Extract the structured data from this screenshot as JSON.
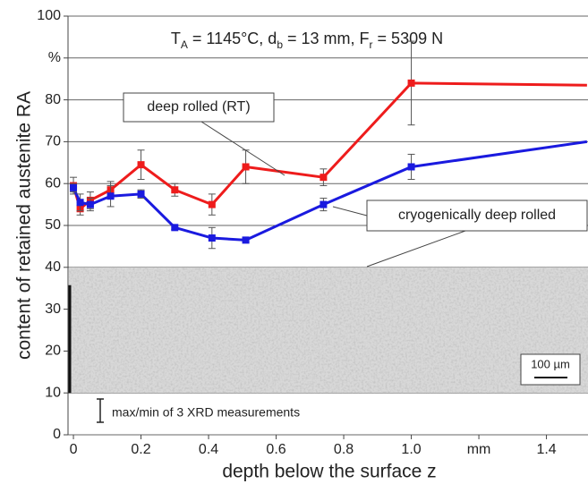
{
  "chart_data": {
    "type": "line",
    "title": [
      "T",
      "A",
      " = 1145°C, d",
      "b",
      " = 13 mm, F",
      "r",
      " = 5309 N"
    ],
    "x_label": "depth below the surface z",
    "y_label": "content of retained austenite RA",
    "x": [
      0,
      0.02,
      0.05,
      0.11,
      0.2,
      0.3,
      0.41,
      0.51,
      0.74,
      1.0,
      1.52
    ],
    "series": [
      {
        "name": "deep rolled (RT)",
        "color": "#ee1c1c",
        "values": [
          59.5,
          54,
          56,
          58.5,
          64.5,
          58.5,
          55,
          64,
          61.5,
          84,
          83.5
        ],
        "errors": [
          2,
          1.5,
          2,
          2,
          3.5,
          1.5,
          2.5,
          4,
          2,
          10,
          null
        ]
      },
      {
        "name": "cryogenically deep rolled",
        "color": "#1a1adf",
        "values": [
          59,
          55.5,
          55,
          57,
          57.5,
          49.5,
          47,
          46.5,
          55,
          64,
          70
        ],
        "errors": [
          1,
          2,
          1.5,
          2.5,
          1,
          0.5,
          2.5,
          0.5,
          1.5,
          3,
          null
        ]
      }
    ],
    "xlim": [
      -0.016,
      1.523
    ],
    "ylim": [
      0,
      100
    ],
    "xticks": [
      {
        "value": 0,
        "label": "0"
      },
      0.2,
      0.4,
      0.6,
      0.8,
      {
        "value": 1.0,
        "label": "1.0"
      },
      {
        "value": 1.2,
        "label": "mm"
      },
      1.4
    ],
    "yticks": [
      0,
      10,
      20,
      30,
      40,
      50,
      60,
      70,
      80,
      {
        "value": 90,
        "label": "%"
      },
      100
    ],
    "grid": true,
    "error_note": "max/min of 3 XRD measurements",
    "scale_bar": "100 µm"
  }
}
